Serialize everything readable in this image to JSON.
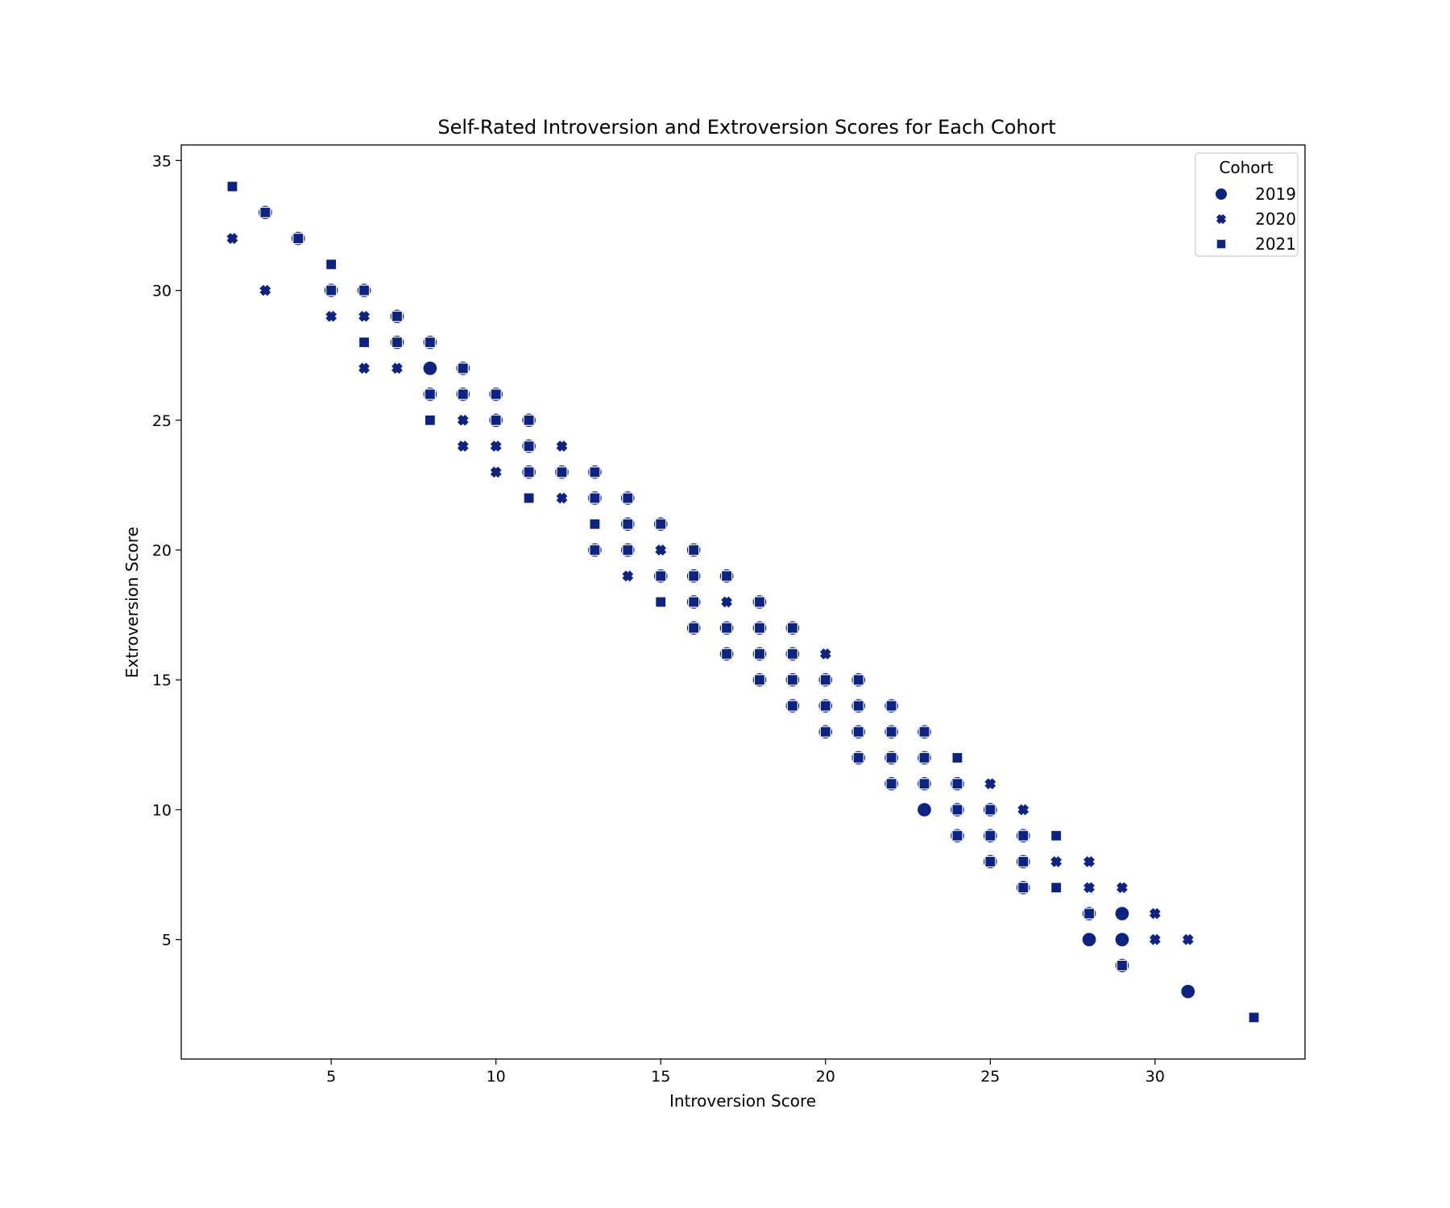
{
  "chart_data": {
    "type": "scatter",
    "title": "Self-Rated Introversion and Extroversion Scores for Each Cohort",
    "xlabel": "Introversion Score",
    "ylabel": "Extroversion Score",
    "xlim": [
      0.45,
      34.55
    ],
    "ylim": [
      0.4,
      35.6
    ],
    "xticks": [
      5,
      10,
      15,
      20,
      25,
      30
    ],
    "yticks": [
      5,
      10,
      15,
      20,
      25,
      30,
      35
    ],
    "grid": false,
    "legend": {
      "title": "Cohort",
      "position": "top-right"
    },
    "marker_color": "#0d2382",
    "marker_edge_color": "#ffffff",
    "series": [
      {
        "name": "2019",
        "marker": "circle",
        "points": [
          [
            3,
            33
          ],
          [
            4,
            32
          ],
          [
            5,
            30
          ],
          [
            6,
            30
          ],
          [
            7,
            29
          ],
          [
            7,
            28
          ],
          [
            8,
            28
          ],
          [
            8,
            27
          ],
          [
            8,
            26
          ],
          [
            9,
            27
          ],
          [
            9,
            26
          ],
          [
            10,
            26
          ],
          [
            10,
            25
          ],
          [
            11,
            25
          ],
          [
            11,
            24
          ],
          [
            11,
            23
          ],
          [
            12,
            23
          ],
          [
            13,
            23
          ],
          [
            13,
            22
          ],
          [
            13,
            20
          ],
          [
            14,
            22
          ],
          [
            14,
            21
          ],
          [
            14,
            20
          ],
          [
            15,
            21
          ],
          [
            15,
            19
          ],
          [
            16,
            20
          ],
          [
            16,
            19
          ],
          [
            16,
            18
          ],
          [
            16,
            17
          ],
          [
            17,
            19
          ],
          [
            17,
            17
          ],
          [
            17,
            16
          ],
          [
            18,
            18
          ],
          [
            18,
            17
          ],
          [
            18,
            16
          ],
          [
            18,
            15
          ],
          [
            19,
            17
          ],
          [
            19,
            16
          ],
          [
            19,
            15
          ],
          [
            19,
            14
          ],
          [
            20,
            15
          ],
          [
            20,
            14
          ],
          [
            20,
            13
          ],
          [
            21,
            15
          ],
          [
            21,
            14
          ],
          [
            21,
            13
          ],
          [
            21,
            12
          ],
          [
            22,
            14
          ],
          [
            22,
            13
          ],
          [
            22,
            12
          ],
          [
            22,
            11
          ],
          [
            23,
            13
          ],
          [
            23,
            12
          ],
          [
            23,
            11
          ],
          [
            23,
            10
          ],
          [
            24,
            11
          ],
          [
            24,
            10
          ],
          [
            24,
            9
          ],
          [
            25,
            10
          ],
          [
            25,
            9
          ],
          [
            25,
            8
          ],
          [
            26,
            9
          ],
          [
            26,
            8
          ],
          [
            26,
            7
          ],
          [
            28,
            6
          ],
          [
            28,
            5
          ],
          [
            29,
            6
          ],
          [
            29,
            5
          ],
          [
            29,
            4
          ],
          [
            31,
            3
          ]
        ]
      },
      {
        "name": "2020",
        "marker": "x",
        "points": [
          [
            2,
            32
          ],
          [
            3,
            30
          ],
          [
            5,
            29
          ],
          [
            6,
            29
          ],
          [
            6,
            27
          ],
          [
            7,
            27
          ],
          [
            9,
            25
          ],
          [
            9,
            24
          ],
          [
            10,
            24
          ],
          [
            10,
            23
          ],
          [
            12,
            24
          ],
          [
            12,
            22
          ],
          [
            14,
            19
          ],
          [
            15,
            20
          ],
          [
            17,
            18
          ],
          [
            20,
            16
          ],
          [
            25,
            11
          ],
          [
            26,
            10
          ],
          [
            27,
            8
          ],
          [
            28,
            8
          ],
          [
            28,
            7
          ],
          [
            29,
            7
          ],
          [
            30,
            6
          ],
          [
            30,
            5
          ],
          [
            31,
            5
          ]
        ]
      },
      {
        "name": "2021",
        "marker": "square",
        "points": [
          [
            2,
            34
          ],
          [
            3,
            33
          ],
          [
            4,
            32
          ],
          [
            5,
            31
          ],
          [
            5,
            30
          ],
          [
            6,
            30
          ],
          [
            6,
            28
          ],
          [
            7,
            29
          ],
          [
            7,
            28
          ],
          [
            8,
            28
          ],
          [
            8,
            26
          ],
          [
            8,
            25
          ],
          [
            9,
            27
          ],
          [
            9,
            26
          ],
          [
            10,
            26
          ],
          [
            10,
            25
          ],
          [
            11,
            25
          ],
          [
            11,
            24
          ],
          [
            11,
            23
          ],
          [
            11,
            22
          ],
          [
            12,
            23
          ],
          [
            13,
            23
          ],
          [
            13,
            22
          ],
          [
            13,
            21
          ],
          [
            13,
            20
          ],
          [
            14,
            22
          ],
          [
            14,
            21
          ],
          [
            14,
            20
          ],
          [
            15,
            21
          ],
          [
            15,
            19
          ],
          [
            15,
            18
          ],
          [
            16,
            20
          ],
          [
            16,
            19
          ],
          [
            16,
            18
          ],
          [
            16,
            17
          ],
          [
            17,
            19
          ],
          [
            17,
            17
          ],
          [
            17,
            16
          ],
          [
            18,
            18
          ],
          [
            18,
            17
          ],
          [
            18,
            16
          ],
          [
            18,
            15
          ],
          [
            19,
            17
          ],
          [
            19,
            16
          ],
          [
            19,
            15
          ],
          [
            19,
            14
          ],
          [
            20,
            15
          ],
          [
            20,
            14
          ],
          [
            20,
            13
          ],
          [
            21,
            15
          ],
          [
            21,
            14
          ],
          [
            21,
            13
          ],
          [
            21,
            12
          ],
          [
            22,
            14
          ],
          [
            22,
            13
          ],
          [
            22,
            12
          ],
          [
            22,
            11
          ],
          [
            23,
            13
          ],
          [
            23,
            12
          ],
          [
            23,
            11
          ],
          [
            24,
            12
          ],
          [
            24,
            11
          ],
          [
            24,
            10
          ],
          [
            24,
            9
          ],
          [
            25,
            10
          ],
          [
            25,
            9
          ],
          [
            25,
            8
          ],
          [
            26,
            9
          ],
          [
            26,
            8
          ],
          [
            26,
            7
          ],
          [
            27,
            9
          ],
          [
            27,
            7
          ],
          [
            28,
            6
          ],
          [
            29,
            4
          ],
          [
            33,
            2
          ]
        ]
      }
    ]
  }
}
